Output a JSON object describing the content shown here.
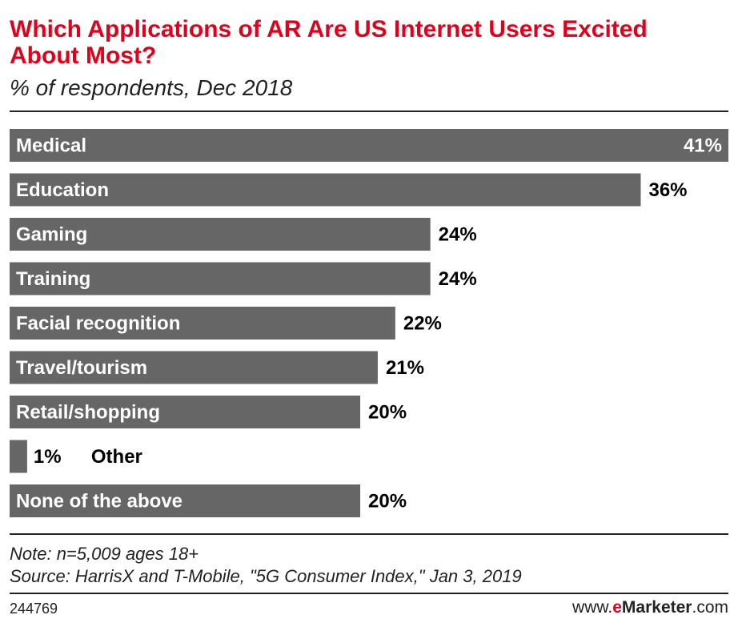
{
  "header": {
    "title": "Which Applications of AR Are US Internet Users Excited About Most?",
    "subtitle": "% of respondents, Dec 2018"
  },
  "chart_data": {
    "type": "bar",
    "orientation": "horizontal",
    "categories": [
      "Medical",
      "Education",
      "Gaming",
      "Training",
      "Facial recognition",
      "Travel/tourism",
      "Retail/shopping",
      "Other",
      "None of the above"
    ],
    "values": [
      41,
      36,
      24,
      24,
      22,
      21,
      20,
      1,
      20
    ],
    "value_labels": [
      "41%",
      "36%",
      "24%",
      "24%",
      "22%",
      "21%",
      "20%",
      "1%",
      "20%"
    ],
    "unit": "%",
    "xlim": [
      0,
      41
    ],
    "bar_color": "#666666",
    "label_color_inside": "#ffffff",
    "label_color_outside": "#000000",
    "grid": false,
    "legend": "none"
  },
  "footer": {
    "note": "Note: n=5,009 ages 18+",
    "source": "Source: HarrisX and T-Mobile, \"5G Consumer Index,\" Jan 3, 2019",
    "chart_id": "244769",
    "brand_prefix": "www.",
    "brand_e": "e",
    "brand_name": "Marketer",
    "brand_suffix": ".com"
  }
}
